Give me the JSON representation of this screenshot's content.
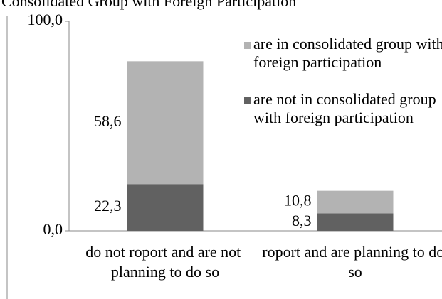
{
  "chart_data": {
    "type": "bar",
    "stacked": true,
    "title": "Consolidated Group with Foreign Participation",
    "categories": [
      "do not roport and are not planning to do so",
      "roport and are planning to do so"
    ],
    "series": [
      {
        "name": "are not in consolidated group with foreign participation",
        "color": "#616161",
        "values": [
          22.3,
          8.3
        ],
        "value_labels": [
          "22,3",
          "8,3"
        ]
      },
      {
        "name": "are in consolidated group with foreign participation",
        "color": "#b3b3b3",
        "values": [
          58.6,
          10.8
        ],
        "value_labels": [
          "58,6",
          "10,8"
        ]
      }
    ],
    "ylim": [
      0,
      100
    ],
    "yticks": [
      {
        "value": 0,
        "label": "0,0"
      },
      {
        "value": 100,
        "label": "100,0"
      }
    ],
    "legend": "top-right"
  }
}
